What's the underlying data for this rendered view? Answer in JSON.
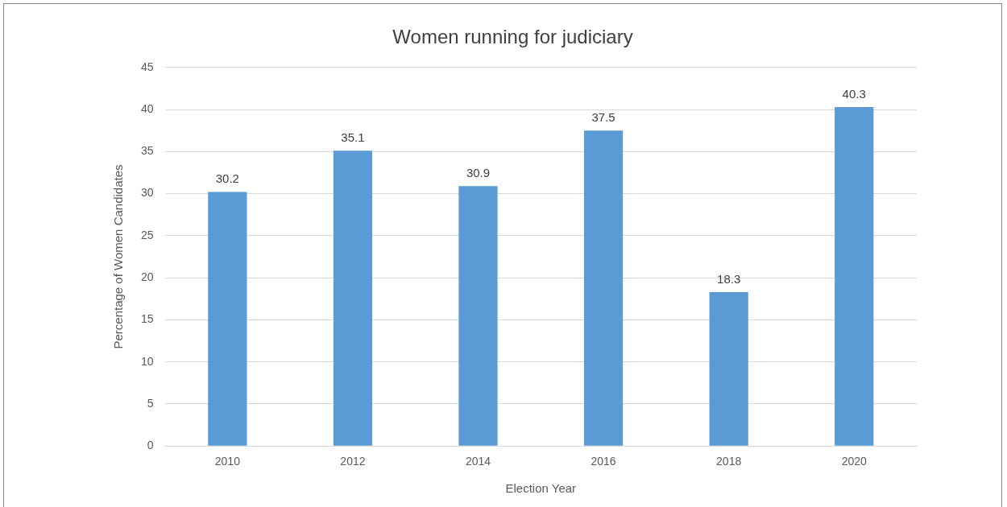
{
  "chart_data": {
    "type": "bar",
    "title": "Women running for judiciary",
    "xlabel": "Election Year",
    "ylabel": "Percentage of Women Candidates",
    "categories": [
      "2010",
      "2012",
      "2014",
      "2016",
      "2018",
      "2020"
    ],
    "values": [
      30.2,
      35.1,
      30.9,
      37.5,
      18.3,
      40.3
    ],
    "color": "#5b9bd5",
    "ylim": [
      0,
      45
    ],
    "yticks": [
      0,
      5,
      10,
      15,
      20,
      25,
      30,
      35,
      40,
      45
    ],
    "grid": "y",
    "data_labels": true,
    "legend": false
  }
}
